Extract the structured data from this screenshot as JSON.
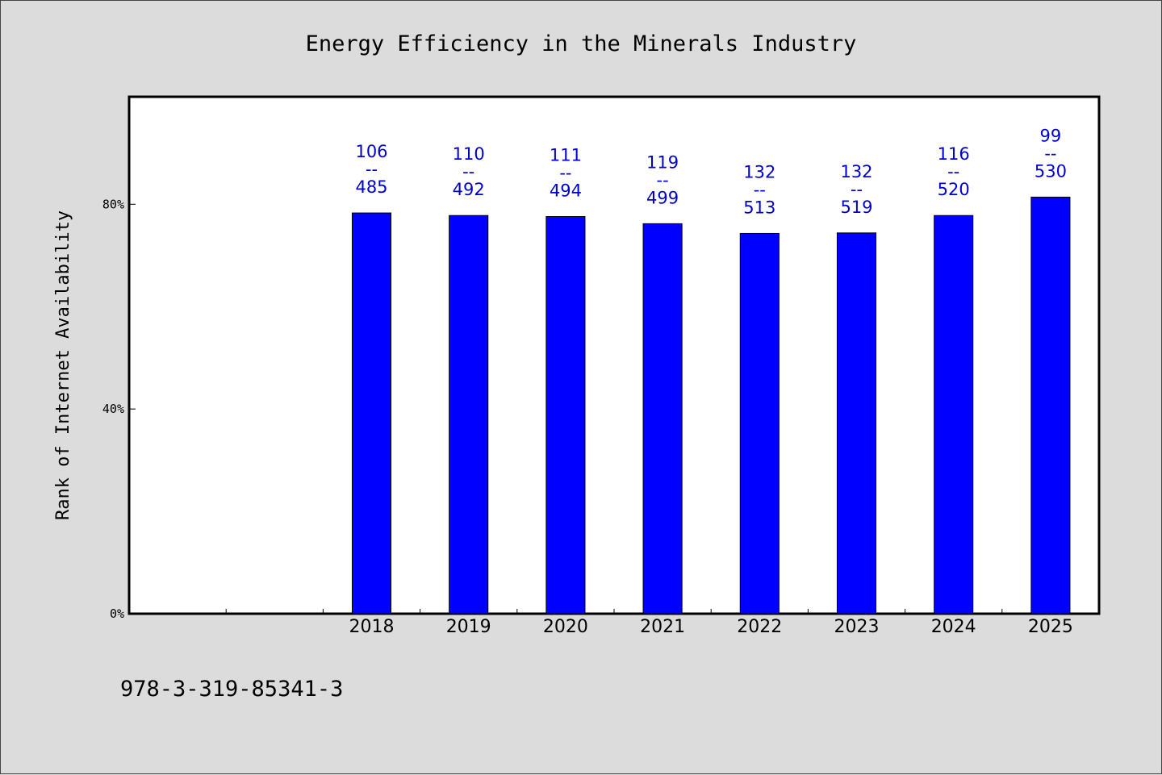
{
  "chart_data": {
    "type": "bar",
    "title": "Energy Efficiency in the Minerals Industry",
    "xlabel": "",
    "ylabel": "Rank of Internet Availability",
    "categories": [
      "",
      "",
      "2018",
      "2019",
      "2020",
      "2021",
      "2022",
      "2023",
      "2024",
      "2025"
    ],
    "series": [
      {
        "values": [
          null,
          null,
          78.3,
          77.8,
          77.6,
          76.2,
          74.3,
          74.4,
          77.8,
          81.4
        ],
        "labels_top": [
          "",
          "",
          "106",
          "110",
          "111",
          "119",
          "132",
          "132",
          "116",
          "99"
        ],
        "labels_bottom": [
          "",
          "",
          "485",
          "492",
          "494",
          "499",
          "513",
          "519",
          "520",
          "530"
        ],
        "label_separator": "--"
      }
    ],
    "ylim": [
      0,
      101
    ],
    "yticks": [
      0,
      40,
      80
    ],
    "ytick_labels": [
      "0%",
      "40%",
      "80%"
    ],
    "grid": false,
    "legend": "none",
    "bar_color": "#0000ff",
    "label_color": "#0000cc"
  },
  "footer": {
    "isbn": "978-3-319-85341-3"
  }
}
